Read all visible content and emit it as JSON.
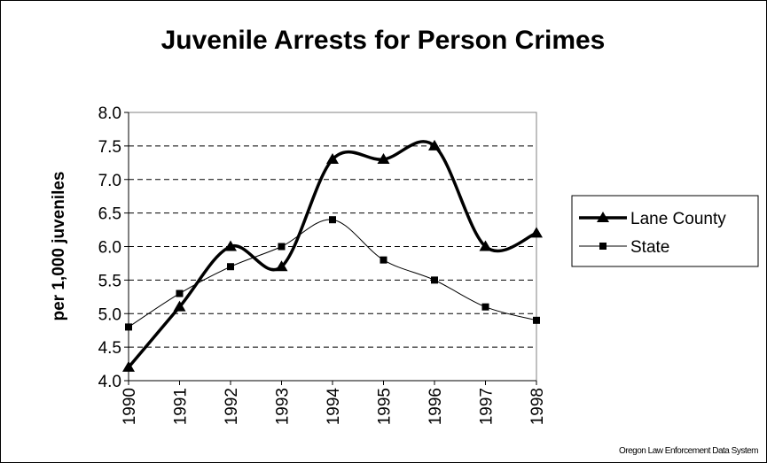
{
  "chart_data": {
    "type": "line",
    "title": "Juvenile Arrests for Person Crimes",
    "y_label": "per 1,000 juveniles",
    "source": "Oregon Law Enforcement Data System",
    "categories": [
      "1990",
      "1991",
      "1992",
      "1993",
      "1994",
      "1995",
      "1996",
      "1997",
      "1998"
    ],
    "series": [
      {
        "name": "Lane County",
        "color": "#000000",
        "marker": "triangle",
        "values": [
          4.2,
          5.1,
          6.0,
          5.7,
          7.3,
          7.3,
          7.5,
          6.0,
          6.2
        ]
      },
      {
        "name": "State",
        "color": "#000000",
        "marker": "square",
        "values": [
          4.8,
          5.3,
          5.7,
          6.0,
          6.4,
          5.8,
          5.5,
          5.1,
          4.9
        ]
      }
    ],
    "ylim": [
      4,
      8
    ],
    "yticks": [
      {
        "value": 4,
        "label": "4.0"
      },
      {
        "value": 4.5,
        "label": "4.5"
      },
      {
        "value": 5,
        "label": "5.0"
      },
      {
        "value": 5.5,
        "label": "5.5"
      },
      {
        "value": 6,
        "label": "6.0"
      },
      {
        "value": 6.5,
        "label": "6.5"
      },
      {
        "value": 7,
        "label": "7.0"
      },
      {
        "value": 7.5,
        "label": "7.5"
      },
      {
        "value": 8,
        "label": "8.0"
      }
    ],
    "grid": true,
    "legend": "right"
  }
}
